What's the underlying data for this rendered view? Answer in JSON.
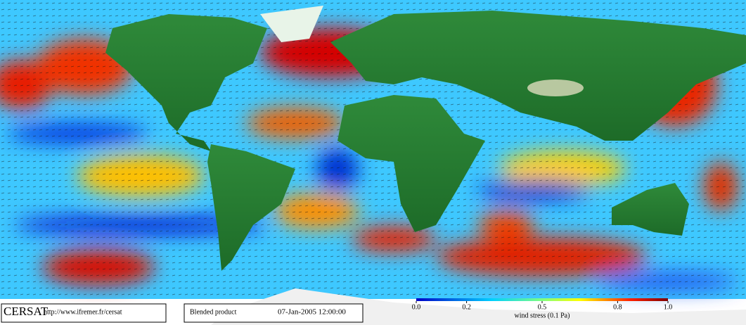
{
  "footer": {
    "logo": "CERSAT",
    "url": "http://www.ifremer.fr/cersat",
    "product": "Blended product",
    "date": "07-Jan-2005 12:00:00"
  },
  "colorbar": {
    "label": "wind stress (0.1 Pa)",
    "lim": [
      0,
      1
    ],
    "ticks": [
      {
        "value": 0,
        "label": "0.0"
      },
      {
        "value": 0.2,
        "label": "0.2"
      },
      {
        "value": 0.5,
        "label": "0.5"
      },
      {
        "value": 0.8,
        "label": "0.8"
      },
      {
        "value": 1,
        "label": "1.0"
      }
    ]
  }
}
